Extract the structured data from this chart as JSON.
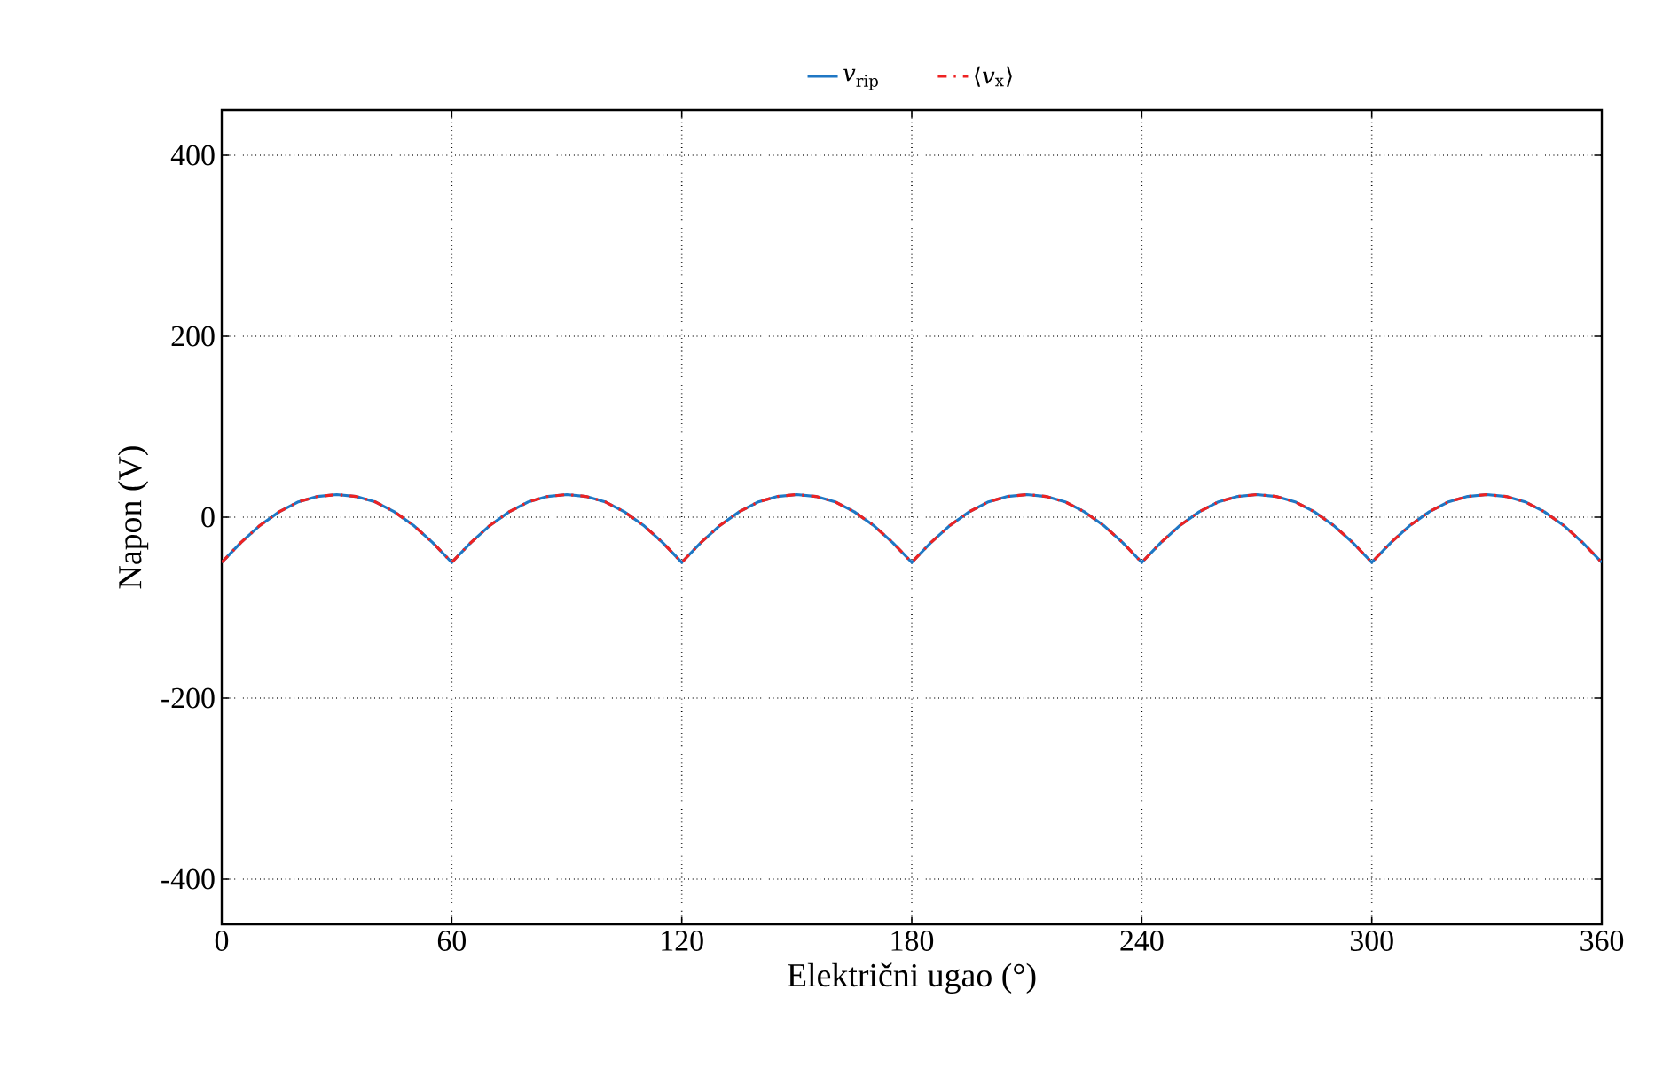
{
  "chart_data": {
    "type": "line",
    "xlabel": "Električni ugao (°)",
    "ylabel": "Napon (V)",
    "x": [
      0,
      5,
      10,
      15,
      20,
      25,
      30,
      35,
      40,
      45,
      50,
      55,
      60,
      65,
      70,
      75,
      80,
      85,
      90,
      95,
      100,
      105,
      110,
      115,
      120,
      125,
      130,
      135,
      140,
      145,
      150,
      155,
      160,
      165,
      170,
      175,
      180,
      185,
      190,
      195,
      200,
      205,
      210,
      215,
      220,
      225,
      230,
      235,
      240,
      245,
      250,
      255,
      260,
      265,
      270,
      275,
      280,
      285,
      290,
      295,
      300,
      305,
      310,
      315,
      320,
      325,
      330,
      335,
      340,
      345,
      350,
      355,
      360
    ],
    "series": [
      {
        "name": "*v*$_{rip}$",
        "color": "#1f77c4",
        "line_style": "solid",
        "values": [
          -50,
          -28,
          -9,
          6,
          17,
          23,
          25,
          23,
          17,
          6,
          -9,
          -28,
          -50,
          -28,
          -9,
          6,
          17,
          23,
          25,
          23,
          17,
          6,
          -9,
          -28,
          -50,
          -28,
          -9,
          6,
          17,
          23,
          25,
          23,
          17,
          6,
          -9,
          -28,
          -50,
          -28,
          -9,
          6,
          17,
          23,
          25,
          23,
          17,
          6,
          -9,
          -28,
          -50,
          -28,
          -9,
          6,
          17,
          23,
          25,
          23,
          17,
          6,
          -9,
          -28,
          -50,
          -28,
          -9,
          6,
          17,
          23,
          25,
          23,
          17,
          6,
          -9,
          -28,
          -50
        ]
      },
      {
        "name": "⟨*v*$_{x}$⟩",
        "color": "#ee2222",
        "line_style": "dashdot",
        "values": [
          -50,
          -28,
          -9,
          6,
          17,
          23,
          25,
          23,
          17,
          6,
          -9,
          -28,
          -50,
          -28,
          -9,
          6,
          17,
          23,
          25,
          23,
          17,
          6,
          -9,
          -28,
          -50,
          -28,
          -9,
          6,
          17,
          23,
          25,
          23,
          17,
          6,
          -9,
          -28,
          -50,
          -28,
          -9,
          6,
          17,
          23,
          25,
          23,
          17,
          6,
          -9,
          -28,
          -50,
          -28,
          -9,
          6,
          17,
          23,
          25,
          23,
          17,
          6,
          -9,
          -28,
          -50,
          -28,
          -9,
          6,
          17,
          23,
          25,
          23,
          17,
          6,
          -9,
          -28,
          -50
        ]
      }
    ],
    "xlim": [
      0,
      360
    ],
    "xticks": [
      0,
      60,
      120,
      180,
      240,
      300,
      360
    ],
    "ylim": [
      -450,
      450
    ],
    "yticks": [
      -400,
      -200,
      0,
      200,
      400
    ],
    "grid": true,
    "legend": "top"
  }
}
